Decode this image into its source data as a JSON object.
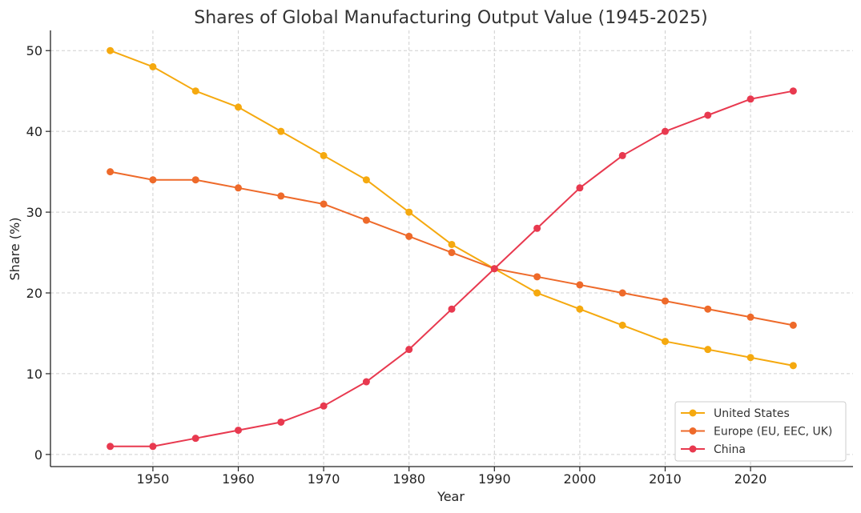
{
  "chart_data": {
    "type": "line",
    "title": "Shares of Global Manufacturing Output Value (1945-2025)",
    "xlabel": "Year",
    "ylabel": "Share (%)",
    "xlim": [
      1938,
      2032
    ],
    "ylim": [
      -1.5,
      52.5
    ],
    "xticks": [
      1950,
      1960,
      1970,
      1980,
      1990,
      2000,
      2010,
      2020
    ],
    "yticks": [
      0,
      10,
      20,
      30,
      40,
      50
    ],
    "grid": true,
    "legend_position": "bottom-right",
    "x": [
      1945,
      1950,
      1955,
      1960,
      1965,
      1970,
      1975,
      1980,
      1985,
      1990,
      1995,
      2000,
      2005,
      2010,
      2015,
      2020,
      2025
    ],
    "series": [
      {
        "name": "United States",
        "color": "#F5A90F",
        "values": [
          50,
          48,
          45,
          43,
          40,
          37,
          34,
          30,
          26,
          23,
          20,
          18,
          16,
          14,
          13,
          12,
          11
        ]
      },
      {
        "name": "Europe (EU, EEC, UK)",
        "color": "#EE6A2A",
        "values": [
          35,
          34,
          34,
          33,
          32,
          31,
          29,
          27,
          25,
          23,
          22,
          21,
          20,
          19,
          18,
          17,
          16
        ]
      },
      {
        "name": "China",
        "color": "#E8394F",
        "values": [
          1,
          1,
          2,
          3,
          4,
          6,
          9,
          13,
          18,
          23,
          28,
          33,
          37,
          40,
          42,
          44,
          45
        ]
      }
    ]
  }
}
